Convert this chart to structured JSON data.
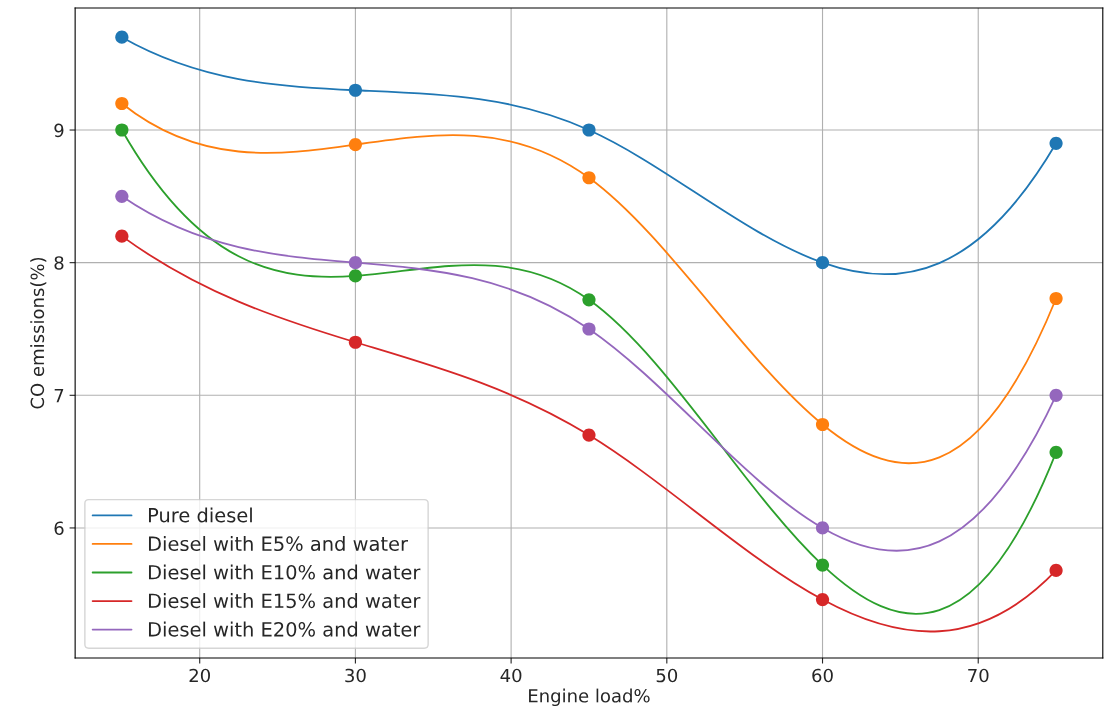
{
  "chart_data": {
    "type": "line",
    "xlabel": "Engine load%",
    "ylabel": "CO emissions(%)",
    "x": [
      15,
      30,
      45,
      60,
      75
    ],
    "series": [
      {
        "name": "Pure diesel",
        "color": "#1f77b4",
        "values": [
          9.7,
          9.3,
          9.0,
          8.0,
          8.9
        ]
      },
      {
        "name": "Diesel with E5% and water",
        "color": "#ff7f0e",
        "values": [
          9.2,
          8.89,
          8.64,
          6.78,
          7.73
        ]
      },
      {
        "name": "Diesel with E10% and water",
        "color": "#2ca02c",
        "values": [
          9.0,
          7.9,
          7.72,
          5.72,
          6.57
        ]
      },
      {
        "name": "Diesel with E15% and water",
        "color": "#d62728",
        "values": [
          8.2,
          7.4,
          6.7,
          5.46,
          5.68
        ]
      },
      {
        "name": "Diesel with E20% and water",
        "color": "#9467bd",
        "values": [
          8.5,
          8.0,
          7.5,
          6.0,
          7.0
        ]
      }
    ],
    "xlim": [
      12,
      78
    ],
    "ylim": [
      5.02,
      9.92
    ],
    "xticks": [
      20,
      30,
      40,
      50,
      60,
      70
    ],
    "yticks": [
      6,
      7,
      8,
      9
    ],
    "grid": true,
    "legend": "bottom left",
    "marker": "circle",
    "line_style": "solid"
  }
}
